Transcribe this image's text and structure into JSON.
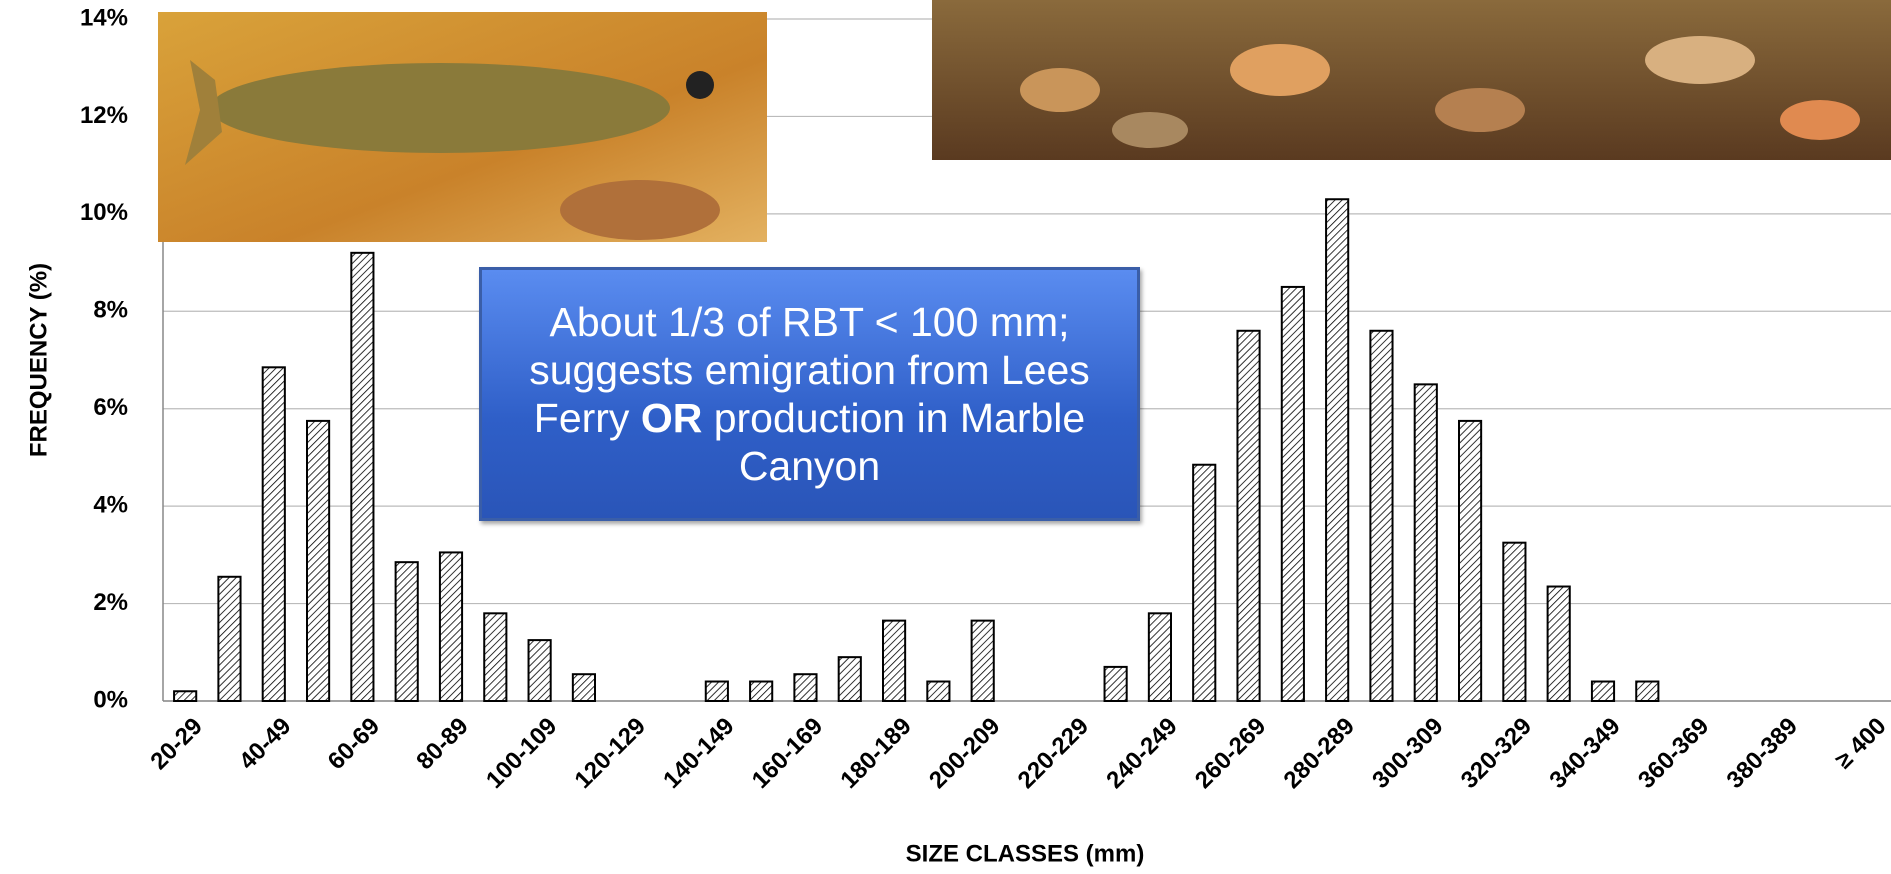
{
  "chart_data": {
    "type": "bar",
    "x_label": "SIZE CLASSES (mm)",
    "y_label": "FREQUENCY (%)",
    "annotation": [
      "About 1/3 of RBT < 100 mm; suggests emigration from Lees Ferry ",
      "OR",
      " production in Marble Canyon"
    ],
    "categories": [
      "20-29",
      null,
      "40-49",
      null,
      "60-69",
      null,
      "80-89",
      null,
      "100-109",
      null,
      "120-129",
      null,
      "140-149",
      null,
      "160-169",
      null,
      "180-189",
      null,
      "200-209",
      null,
      "220-229",
      null,
      "240-249",
      null,
      "260-269",
      null,
      "280-289",
      null,
      "300-309",
      null,
      "320-329",
      null,
      "340-349",
      null,
      "360-369",
      null,
      "380-389",
      null,
      "≥ 400"
    ],
    "values": [
      0.2,
      2.55,
      6.85,
      5.75,
      9.2,
      2.85,
      3.05,
      1.8,
      1.25,
      0.55,
      0,
      0,
      0.4,
      0.4,
      0.55,
      0.9,
      1.65,
      0.4,
      1.65,
      0,
      0,
      0.7,
      1.8,
      4.85,
      7.6,
      8.5,
      10.3,
      7.6,
      6.5,
      5.75,
      3.25,
      2.35,
      0.4,
      0.4,
      0,
      0,
      0,
      0,
      0
    ],
    "ylim": [
      0,
      14
    ],
    "yticks": [
      {
        "value": 0,
        "label": "0%"
      },
      {
        "value": 2,
        "label": "2%"
      },
      {
        "value": 4,
        "label": "4%"
      },
      {
        "value": 6,
        "label": "6%"
      },
      {
        "value": 8,
        "label": "8%"
      },
      {
        "value": 10,
        "label": "10%"
      },
      {
        "value": 12,
        "label": "12%"
      },
      {
        "value": 14,
        "label": "14%"
      }
    ],
    "grid": true,
    "color": "#ffffff"
  }
}
